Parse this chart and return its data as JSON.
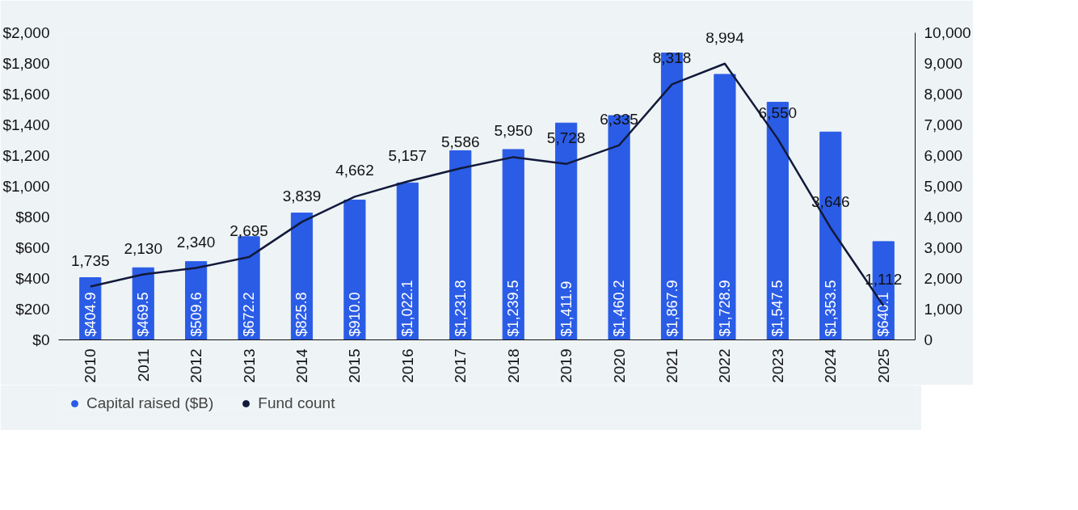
{
  "chart_data": {
    "type": "bar",
    "categories": [
      "2010",
      "2011",
      "2012",
      "2013",
      "2014",
      "2015",
      "2016",
      "2017",
      "2018",
      "2019",
      "2020",
      "2021",
      "2022",
      "2023",
      "2024",
      "2025"
    ],
    "series": [
      {
        "name": "Capital raised ($B)",
        "color": "#2a5ce6",
        "values": [
          404.9,
          469.5,
          509.6,
          672.2,
          825.8,
          910.0,
          1022.1,
          1231.8,
          1239.5,
          1411.9,
          1460.2,
          1867.9,
          1728.9,
          1547.5,
          1353.5,
          640.1
        ],
        "value_labels": [
          "$404.9",
          "$469.5",
          "$509.6",
          "$672.2",
          "$825.8",
          "$910.0",
          "$1,022.1",
          "$1,231.8",
          "$1,239.5",
          "$1,411.9",
          "$1,460.2",
          "$1,867.9",
          "$1,728.9",
          "$1,547.5",
          "$1,353.5",
          "$640.1"
        ]
      },
      {
        "name": "Fund count",
        "type": "line",
        "axis": "y2",
        "color": "#121a3a",
        "values": [
          1735,
          2130,
          2340,
          2695,
          3839,
          4662,
          5157,
          5586,
          5950,
          5728,
          6335,
          8318,
          8994,
          6550,
          3646,
          1112
        ],
        "value_labels": [
          "1,735",
          "2,130",
          "2,340",
          "2,695",
          "3,839",
          "4,662",
          "5,157",
          "5,586",
          "5,950",
          "5,728",
          "6,335",
          "8,318",
          "8,994",
          "6,550",
          "3,646",
          "1,112"
        ]
      }
    ],
    "ylim": [
      0,
      2000
    ],
    "yticks": [
      {
        "value": 0,
        "label": "$0"
      },
      {
        "value": 200,
        "label": "$200"
      },
      {
        "value": 400,
        "label": "$400"
      },
      {
        "value": 600,
        "label": "$600"
      },
      {
        "value": 800,
        "label": "$800"
      },
      {
        "value": 1000,
        "label": "$1,000"
      },
      {
        "value": 1200,
        "label": "$1,200"
      },
      {
        "value": 1400,
        "label": "$1,400"
      },
      {
        "value": 1600,
        "label": "$1,600"
      },
      {
        "value": 1800,
        "label": "$1,800"
      },
      {
        "value": 2000,
        "label": "$2,000"
      }
    ],
    "y2lim": [
      0,
      10000
    ],
    "y2ticks": [
      0,
      {
        "value": 1000,
        "label": "1,000"
      },
      {
        "value": 2000,
        "label": "2,000"
      },
      {
        "value": 3000,
        "label": "3,000"
      },
      {
        "value": 4000,
        "label": "4,000"
      },
      {
        "value": 5000,
        "label": "5,000"
      },
      {
        "value": 6000,
        "label": "6,000"
      },
      {
        "value": 7000,
        "label": "7,000"
      },
      {
        "value": 8000,
        "label": "8,000"
      },
      {
        "value": 9000,
        "label": "9,000"
      },
      {
        "value": 10000,
        "label": "10,000"
      }
    ],
    "grid": false,
    "legend": "bottom left"
  }
}
